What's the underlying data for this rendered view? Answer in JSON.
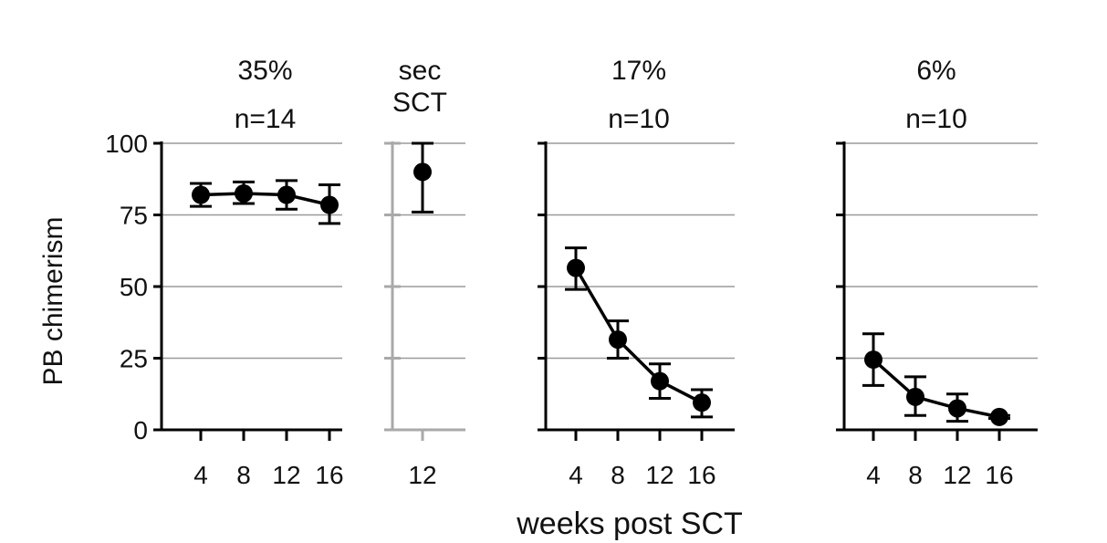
{
  "chart_data": {
    "type": "line",
    "ylabel": "PB chimerism",
    "xlabel": "weeks post SCT",
    "ylim": [
      0,
      100
    ],
    "yticks": [
      0,
      25,
      50,
      75,
      100
    ],
    "grid": true,
    "panels": [
      {
        "id": "35pct",
        "title_line1": "35%",
        "title_line2": "n=14",
        "x": [
          4,
          8,
          12,
          16
        ],
        "values": [
          82,
          82.5,
          82,
          78.5
        ],
        "err_low": [
          78,
          79,
          77,
          72
        ],
        "err_high": [
          86,
          86.5,
          87,
          85.5
        ]
      },
      {
        "id": "secsct",
        "title_line1": "sec",
        "title_line2": "SCT",
        "x": [
          12
        ],
        "values": [
          90
        ],
        "err_low": [
          76
        ],
        "err_high": [
          100
        ]
      },
      {
        "id": "17pct",
        "title_line1": "17%",
        "title_line2": "n=10",
        "x": [
          4,
          8,
          12,
          16
        ],
        "values": [
          56.5,
          31.5,
          17,
          9.5
        ],
        "err_low": [
          49,
          25,
          11,
          4.5
        ],
        "err_high": [
          63.5,
          38,
          23,
          14
        ]
      },
      {
        "id": "6pct",
        "title_line1": "6%",
        "title_line2": "n=10",
        "x": [
          4,
          8,
          12,
          16
        ],
        "values": [
          24.5,
          11.5,
          7.5,
          4.5
        ],
        "err_low": [
          15.5,
          5,
          3,
          4
        ],
        "err_high": [
          33.5,
          18.5,
          12.5,
          5
        ]
      }
    ]
  }
}
